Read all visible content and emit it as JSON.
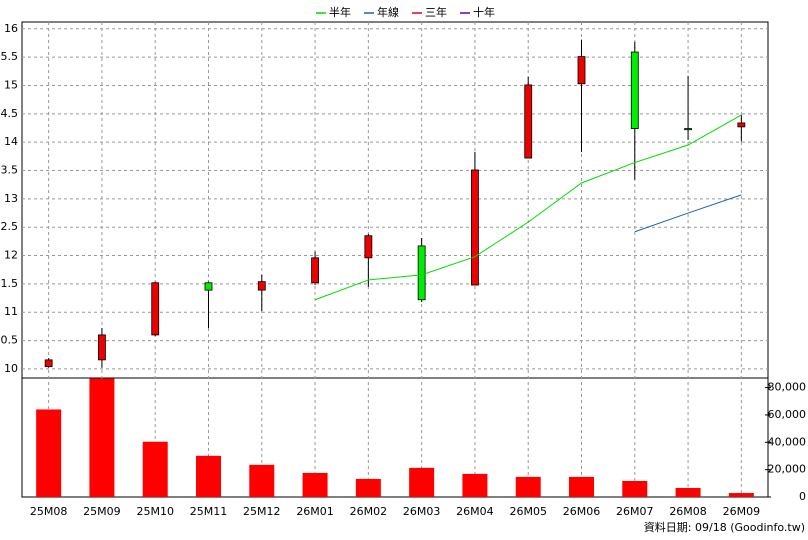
{
  "chart_data": {
    "type": "candlestick",
    "categories": [
      "25M08",
      "25M09",
      "25M10",
      "25M11",
      "25M12",
      "26M01",
      "26M02",
      "26M03",
      "26M04",
      "26M05",
      "26M06",
      "26M07",
      "26M08",
      "26M09"
    ],
    "open": [
      10.04,
      10.16,
      10.6,
      11.52,
      11.39,
      11.52,
      11.96,
      12.17,
      11.48,
      13.72,
      15.03,
      15.59,
      14.24,
      14.27
    ],
    "high": [
      10.19,
      10.72,
      11.54,
      11.54,
      11.66,
      12.07,
      12.38,
      12.31,
      13.83,
      15.15,
      15.81,
      15.77,
      15.17,
      14.48
    ],
    "low": [
      10.02,
      10.02,
      10.58,
      10.72,
      11.02,
      11.48,
      11.45,
      11.18,
      11.48,
      13.72,
      13.83,
      13.34,
      14.04,
      14.01
    ],
    "close": [
      10.16,
      10.6,
      11.52,
      11.39,
      11.54,
      11.96,
      12.35,
      11.22,
      13.51,
      15.01,
      15.51,
      14.24,
      14.22,
      14.34
    ],
    "up_color": "#ee0000",
    "down_color": "#00ee00",
    "series": [
      {
        "name": "半年",
        "color": "#00dd00",
        "values": [
          null,
          null,
          null,
          null,
          null,
          11.22,
          11.57,
          11.66,
          11.98,
          12.59,
          13.28,
          13.64,
          13.95,
          14.48
        ]
      },
      {
        "name": "年線",
        "color": "#1f5fbf",
        "values": [
          null,
          null,
          null,
          null,
          null,
          null,
          null,
          null,
          null,
          null,
          null,
          12.42,
          12.75,
          13.07
        ]
      },
      {
        "name": "三年",
        "color": "#ee0000",
        "values": [
          null,
          null,
          null,
          null,
          null,
          null,
          null,
          null,
          null,
          null,
          null,
          null,
          null,
          null
        ]
      },
      {
        "name": "十年",
        "color": "#5500cc",
        "values": [
          null,
          null,
          null,
          null,
          null,
          null,
          null,
          null,
          null,
          null,
          null,
          null,
          null,
          null
        ]
      }
    ],
    "ylim": [
      9.84,
      16.12
    ],
    "yticks": [
      16,
      {
        "value": 15.5,
        "label": "5.5"
      },
      15,
      {
        "value": 14.5,
        "label": "4.5"
      },
      14,
      {
        "value": 13.5,
        "label": "3.5"
      },
      13,
      {
        "value": 12.5,
        "label": "2.5"
      },
      12,
      {
        "value": 11.5,
        "label": "1.5"
      },
      11,
      {
        "value": 10.5,
        "label": "0.5"
      },
      10
    ],
    "grid": true,
    "volume": {
      "color": "#ff0000",
      "values": [
        64000,
        86600,
        40400,
        30100,
        23500,
        17600,
        13200,
        21300,
        16900,
        14700,
        14700,
        11700,
        6600,
        2900
      ],
      "ylim": [
        0,
        87000
      ],
      "yticks": [
        {
          "value": 80000,
          "label": "80,000"
        },
        {
          "value": 60000,
          "label": "60,000"
        },
        {
          "value": 40000,
          "label": "40,000"
        },
        {
          "value": 20000,
          "label": "20,000"
        },
        0
      ]
    },
    "footer": "資料日期: 09/18 (Goodinfo.tw)"
  }
}
